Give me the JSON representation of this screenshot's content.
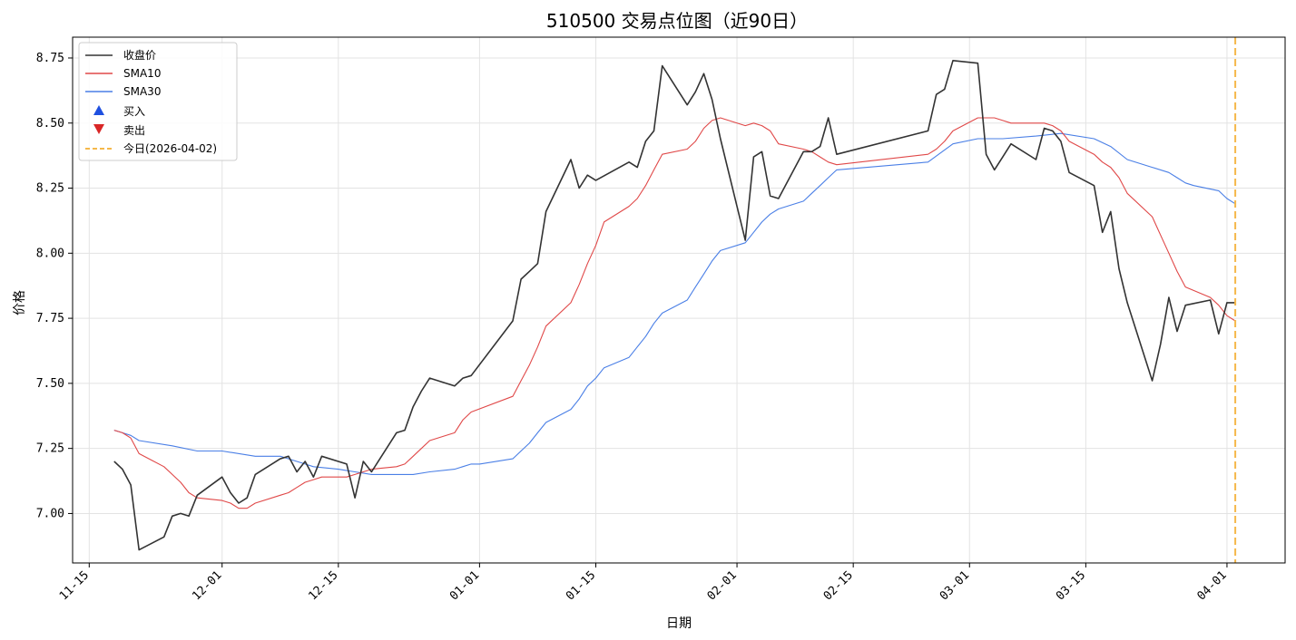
{
  "chart_data": {
    "type": "line",
    "title": "510500 交易点位图（近90日）",
    "xlabel": "日期",
    "ylabel": "价格",
    "x_ticks": [
      "11-15",
      "12-01",
      "12-15",
      "01-01",
      "01-15",
      "02-01",
      "02-15",
      "03-01",
      "03-15",
      "04-01"
    ],
    "y_ticks": [
      "7.00",
      "7.25",
      "7.50",
      "7.75",
      "8.00",
      "8.25",
      "8.50",
      "8.75"
    ],
    "ylim": [
      6.81,
      8.83
    ],
    "xlim": [
      "2025-11-13",
      "2026-04-08"
    ],
    "grid": true,
    "legend_position": "upper-left",
    "series": [
      {
        "name": "收盘价",
        "color": "#333333",
        "points": [
          [
            "2025-11-18",
            7.2
          ],
          [
            "2025-11-19",
            7.17
          ],
          [
            "2025-11-20",
            7.11
          ],
          [
            "2025-11-21",
            6.86
          ],
          [
            "2025-11-24",
            6.91
          ],
          [
            "2025-11-25",
            6.99
          ],
          [
            "2025-11-26",
            7.0
          ],
          [
            "2025-11-27",
            6.99
          ],
          [
            "2025-11-28",
            7.07
          ],
          [
            "2025-12-01",
            7.14
          ],
          [
            "2025-12-02",
            7.08
          ],
          [
            "2025-12-03",
            7.04
          ],
          [
            "2025-12-04",
            7.06
          ],
          [
            "2025-12-05",
            7.15
          ],
          [
            "2025-12-08",
            7.21
          ],
          [
            "2025-12-09",
            7.22
          ],
          [
            "2025-12-10",
            7.16
          ],
          [
            "2025-12-11",
            7.2
          ],
          [
            "2025-12-12",
            7.14
          ],
          [
            "2025-12-13",
            7.22
          ],
          [
            "2025-12-16",
            7.19
          ],
          [
            "2025-12-17",
            7.06
          ],
          [
            "2025-12-18",
            7.2
          ],
          [
            "2025-12-19",
            7.16
          ],
          [
            "2025-12-22",
            7.31
          ],
          [
            "2025-12-23",
            7.32
          ],
          [
            "2025-12-24",
            7.41
          ],
          [
            "2025-12-25",
            7.47
          ],
          [
            "2025-12-26",
            7.52
          ],
          [
            "2025-12-29",
            7.49
          ],
          [
            "2025-12-30",
            7.52
          ],
          [
            "2025-12-31",
            7.53
          ],
          [
            "2026-01-05",
            7.74
          ],
          [
            "2026-01-06",
            7.9
          ],
          [
            "2026-01-07",
            7.93
          ],
          [
            "2026-01-08",
            7.96
          ],
          [
            "2026-01-09",
            8.16
          ],
          [
            "2026-01-12",
            8.36
          ],
          [
            "2026-01-13",
            8.25
          ],
          [
            "2026-01-14",
            8.3
          ],
          [
            "2026-01-15",
            8.28
          ],
          [
            "2026-01-19",
            8.35
          ],
          [
            "2026-01-20",
            8.33
          ],
          [
            "2026-01-21",
            8.43
          ],
          [
            "2026-01-22",
            8.47
          ],
          [
            "2026-01-23",
            8.72
          ],
          [
            "2026-01-26",
            8.57
          ],
          [
            "2026-01-27",
            8.62
          ],
          [
            "2026-01-28",
            8.69
          ],
          [
            "2026-01-29",
            8.59
          ],
          [
            "2026-01-30",
            8.44
          ],
          [
            "2026-02-02",
            8.05
          ],
          [
            "2026-02-03",
            8.37
          ],
          [
            "2026-02-04",
            8.39
          ],
          [
            "2026-02-05",
            8.22
          ],
          [
            "2026-02-06",
            8.21
          ],
          [
            "2026-02-09",
            8.39
          ],
          [
            "2026-02-10",
            8.39
          ],
          [
            "2026-02-11",
            8.41
          ],
          [
            "2026-02-12",
            8.52
          ],
          [
            "2026-02-13",
            8.38
          ],
          [
            "2026-02-24",
            8.47
          ],
          [
            "2026-02-25",
            8.61
          ],
          [
            "2026-02-26",
            8.63
          ],
          [
            "2026-02-27",
            8.74
          ],
          [
            "2026-03-02",
            8.73
          ],
          [
            "2026-03-03",
            8.38
          ],
          [
            "2026-03-04",
            8.32
          ],
          [
            "2026-03-05",
            8.37
          ],
          [
            "2026-03-06",
            8.42
          ],
          [
            "2026-03-09",
            8.36
          ],
          [
            "2026-03-10",
            8.48
          ],
          [
            "2026-03-11",
            8.47
          ],
          [
            "2026-03-12",
            8.43
          ],
          [
            "2026-03-13",
            8.31
          ],
          [
            "2026-03-16",
            8.26
          ],
          [
            "2026-03-17",
            8.08
          ],
          [
            "2026-03-18",
            8.16
          ],
          [
            "2026-03-19",
            7.94
          ],
          [
            "2026-03-20",
            7.81
          ],
          [
            "2026-03-23",
            7.51
          ],
          [
            "2026-03-24",
            7.65
          ],
          [
            "2026-03-25",
            7.83
          ],
          [
            "2026-03-26",
            7.7
          ],
          [
            "2026-03-27",
            7.8
          ],
          [
            "2026-03-30",
            7.82
          ],
          [
            "2026-03-31",
            7.69
          ],
          [
            "2026-04-01",
            7.81
          ],
          [
            "2026-04-02",
            7.81
          ]
        ]
      },
      {
        "name": "SMA10",
        "color": "#e04848",
        "points": [
          [
            "2025-11-18",
            7.32
          ],
          [
            "2025-11-19",
            7.31
          ],
          [
            "2025-11-20",
            7.29
          ],
          [
            "2025-11-21",
            7.23
          ],
          [
            "2025-11-24",
            7.18
          ],
          [
            "2025-11-25",
            7.15
          ],
          [
            "2025-11-26",
            7.12
          ],
          [
            "2025-11-27",
            7.08
          ],
          [
            "2025-11-28",
            7.06
          ],
          [
            "2025-12-01",
            7.05
          ],
          [
            "2025-12-02",
            7.04
          ],
          [
            "2025-12-03",
            7.02
          ],
          [
            "2025-12-04",
            7.02
          ],
          [
            "2025-12-05",
            7.04
          ],
          [
            "2025-12-08",
            7.07
          ],
          [
            "2025-12-09",
            7.08
          ],
          [
            "2025-12-10",
            7.1
          ],
          [
            "2025-12-11",
            7.12
          ],
          [
            "2025-12-12",
            7.13
          ],
          [
            "2025-12-13",
            7.14
          ],
          [
            "2025-12-16",
            7.14
          ],
          [
            "2025-12-17",
            7.15
          ],
          [
            "2025-12-18",
            7.16
          ],
          [
            "2025-12-19",
            7.17
          ],
          [
            "2025-12-22",
            7.18
          ],
          [
            "2025-12-23",
            7.19
          ],
          [
            "2025-12-24",
            7.22
          ],
          [
            "2025-12-25",
            7.25
          ],
          [
            "2025-12-26",
            7.28
          ],
          [
            "2025-12-29",
            7.31
          ],
          [
            "2025-12-30",
            7.36
          ],
          [
            "2025-12-31",
            7.39
          ],
          [
            "2026-01-05",
            7.45
          ],
          [
            "2026-01-06",
            7.51
          ],
          [
            "2026-01-07",
            7.57
          ],
          [
            "2026-01-08",
            7.64
          ],
          [
            "2026-01-09",
            7.72
          ],
          [
            "2026-01-12",
            7.81
          ],
          [
            "2026-01-13",
            7.88
          ],
          [
            "2026-01-14",
            7.96
          ],
          [
            "2026-01-15",
            8.03
          ],
          [
            "2026-01-16",
            8.12
          ],
          [
            "2026-01-19",
            8.18
          ],
          [
            "2026-01-20",
            8.21
          ],
          [
            "2026-01-21",
            8.26
          ],
          [
            "2026-01-22",
            8.32
          ],
          [
            "2026-01-23",
            8.38
          ],
          [
            "2026-01-26",
            8.4
          ],
          [
            "2026-01-27",
            8.43
          ],
          [
            "2026-01-28",
            8.48
          ],
          [
            "2026-01-29",
            8.51
          ],
          [
            "2026-01-30",
            8.52
          ],
          [
            "2026-02-02",
            8.49
          ],
          [
            "2026-02-03",
            8.5
          ],
          [
            "2026-02-04",
            8.49
          ],
          [
            "2026-02-05",
            8.47
          ],
          [
            "2026-02-06",
            8.42
          ],
          [
            "2026-02-09",
            8.4
          ],
          [
            "2026-02-10",
            8.39
          ],
          [
            "2026-02-11",
            8.37
          ],
          [
            "2026-02-12",
            8.35
          ],
          [
            "2026-02-13",
            8.34
          ],
          [
            "2026-02-24",
            8.38
          ],
          [
            "2026-02-25",
            8.4
          ],
          [
            "2026-02-26",
            8.43
          ],
          [
            "2026-02-27",
            8.47
          ],
          [
            "2026-03-02",
            8.52
          ],
          [
            "2026-03-03",
            8.52
          ],
          [
            "2026-03-04",
            8.52
          ],
          [
            "2026-03-05",
            8.51
          ],
          [
            "2026-03-06",
            8.5
          ],
          [
            "2026-03-09",
            8.5
          ],
          [
            "2026-03-10",
            8.5
          ],
          [
            "2026-03-11",
            8.49
          ],
          [
            "2026-03-12",
            8.47
          ],
          [
            "2026-03-13",
            8.43
          ],
          [
            "2026-03-16",
            8.38
          ],
          [
            "2026-03-17",
            8.35
          ],
          [
            "2026-03-18",
            8.33
          ],
          [
            "2026-03-19",
            8.29
          ],
          [
            "2026-03-20",
            8.23
          ],
          [
            "2026-03-23",
            8.14
          ],
          [
            "2026-03-24",
            8.07
          ],
          [
            "2026-03-25",
            8.0
          ],
          [
            "2026-03-26",
            7.93
          ],
          [
            "2026-03-27",
            7.87
          ],
          [
            "2026-03-30",
            7.83
          ],
          [
            "2026-03-31",
            7.8
          ],
          [
            "2026-04-01",
            7.76
          ],
          [
            "2026-04-02",
            7.74
          ]
        ]
      },
      {
        "name": "SMA30",
        "color": "#4a7fe6",
        "points": [
          [
            "2025-11-18",
            7.32
          ],
          [
            "2025-11-19",
            7.31
          ],
          [
            "2025-11-20",
            7.3
          ],
          [
            "2025-11-21",
            7.28
          ],
          [
            "2025-11-25",
            7.26
          ],
          [
            "2025-11-28",
            7.24
          ],
          [
            "2025-12-01",
            7.24
          ],
          [
            "2025-12-05",
            7.22
          ],
          [
            "2025-12-08",
            7.22
          ],
          [
            "2025-12-09",
            7.21
          ],
          [
            "2025-12-10",
            7.2
          ],
          [
            "2025-12-11",
            7.19
          ],
          [
            "2025-12-12",
            7.18
          ],
          [
            "2025-12-15",
            7.17
          ],
          [
            "2025-12-17",
            7.16
          ],
          [
            "2025-12-19",
            7.15
          ],
          [
            "2025-12-22",
            7.15
          ],
          [
            "2025-12-24",
            7.15
          ],
          [
            "2025-12-26",
            7.16
          ],
          [
            "2025-12-29",
            7.17
          ],
          [
            "2025-12-31",
            7.19
          ],
          [
            "2026-01-01",
            7.19
          ],
          [
            "2026-01-05",
            7.21
          ],
          [
            "2026-01-06",
            7.24
          ],
          [
            "2026-01-07",
            7.27
          ],
          [
            "2026-01-08",
            7.31
          ],
          [
            "2026-01-09",
            7.35
          ],
          [
            "2026-01-12",
            7.4
          ],
          [
            "2026-01-13",
            7.44
          ],
          [
            "2026-01-14",
            7.49
          ],
          [
            "2026-01-15",
            7.52
          ],
          [
            "2026-01-16",
            7.56
          ],
          [
            "2026-01-19",
            7.6
          ],
          [
            "2026-01-20",
            7.64
          ],
          [
            "2026-01-21",
            7.68
          ],
          [
            "2026-01-22",
            7.73
          ],
          [
            "2026-01-23",
            7.77
          ],
          [
            "2026-01-26",
            7.82
          ],
          [
            "2026-01-27",
            7.87
          ],
          [
            "2026-01-28",
            7.92
          ],
          [
            "2026-01-29",
            7.97
          ],
          [
            "2026-01-30",
            8.01
          ],
          [
            "2026-02-02",
            8.04
          ],
          [
            "2026-02-03",
            8.08
          ],
          [
            "2026-02-04",
            8.12
          ],
          [
            "2026-02-05",
            8.15
          ],
          [
            "2026-02-06",
            8.17
          ],
          [
            "2026-02-09",
            8.2
          ],
          [
            "2026-02-10",
            8.23
          ],
          [
            "2026-02-11",
            8.26
          ],
          [
            "2026-02-12",
            8.29
          ],
          [
            "2026-02-13",
            8.32
          ],
          [
            "2026-02-24",
            8.35
          ],
          [
            "2026-02-27",
            8.42
          ],
          [
            "2026-03-02",
            8.44
          ],
          [
            "2026-03-05",
            8.44
          ],
          [
            "2026-03-09",
            8.45
          ],
          [
            "2026-03-12",
            8.46
          ],
          [
            "2026-03-16",
            8.44
          ],
          [
            "2026-03-18",
            8.41
          ],
          [
            "2026-03-20",
            8.36
          ],
          [
            "2026-03-23",
            8.33
          ],
          [
            "2026-03-25",
            8.31
          ],
          [
            "2026-03-26",
            8.29
          ],
          [
            "2026-03-27",
            8.27
          ],
          [
            "2026-03-28",
            8.26
          ],
          [
            "2026-03-31",
            8.24
          ],
          [
            "2026-04-01",
            8.21
          ],
          [
            "2026-04-02",
            8.19
          ]
        ]
      }
    ],
    "markers": [
      {
        "name": "买入",
        "shape": "triangle-up",
        "color": "#1f50e0"
      },
      {
        "name": "卖出",
        "shape": "triangle-down",
        "color": "#d92626"
      }
    ],
    "vline": {
      "name": "今日(2026-04-02)",
      "date": "2026-04-02",
      "color": "#f5b84a"
    }
  }
}
